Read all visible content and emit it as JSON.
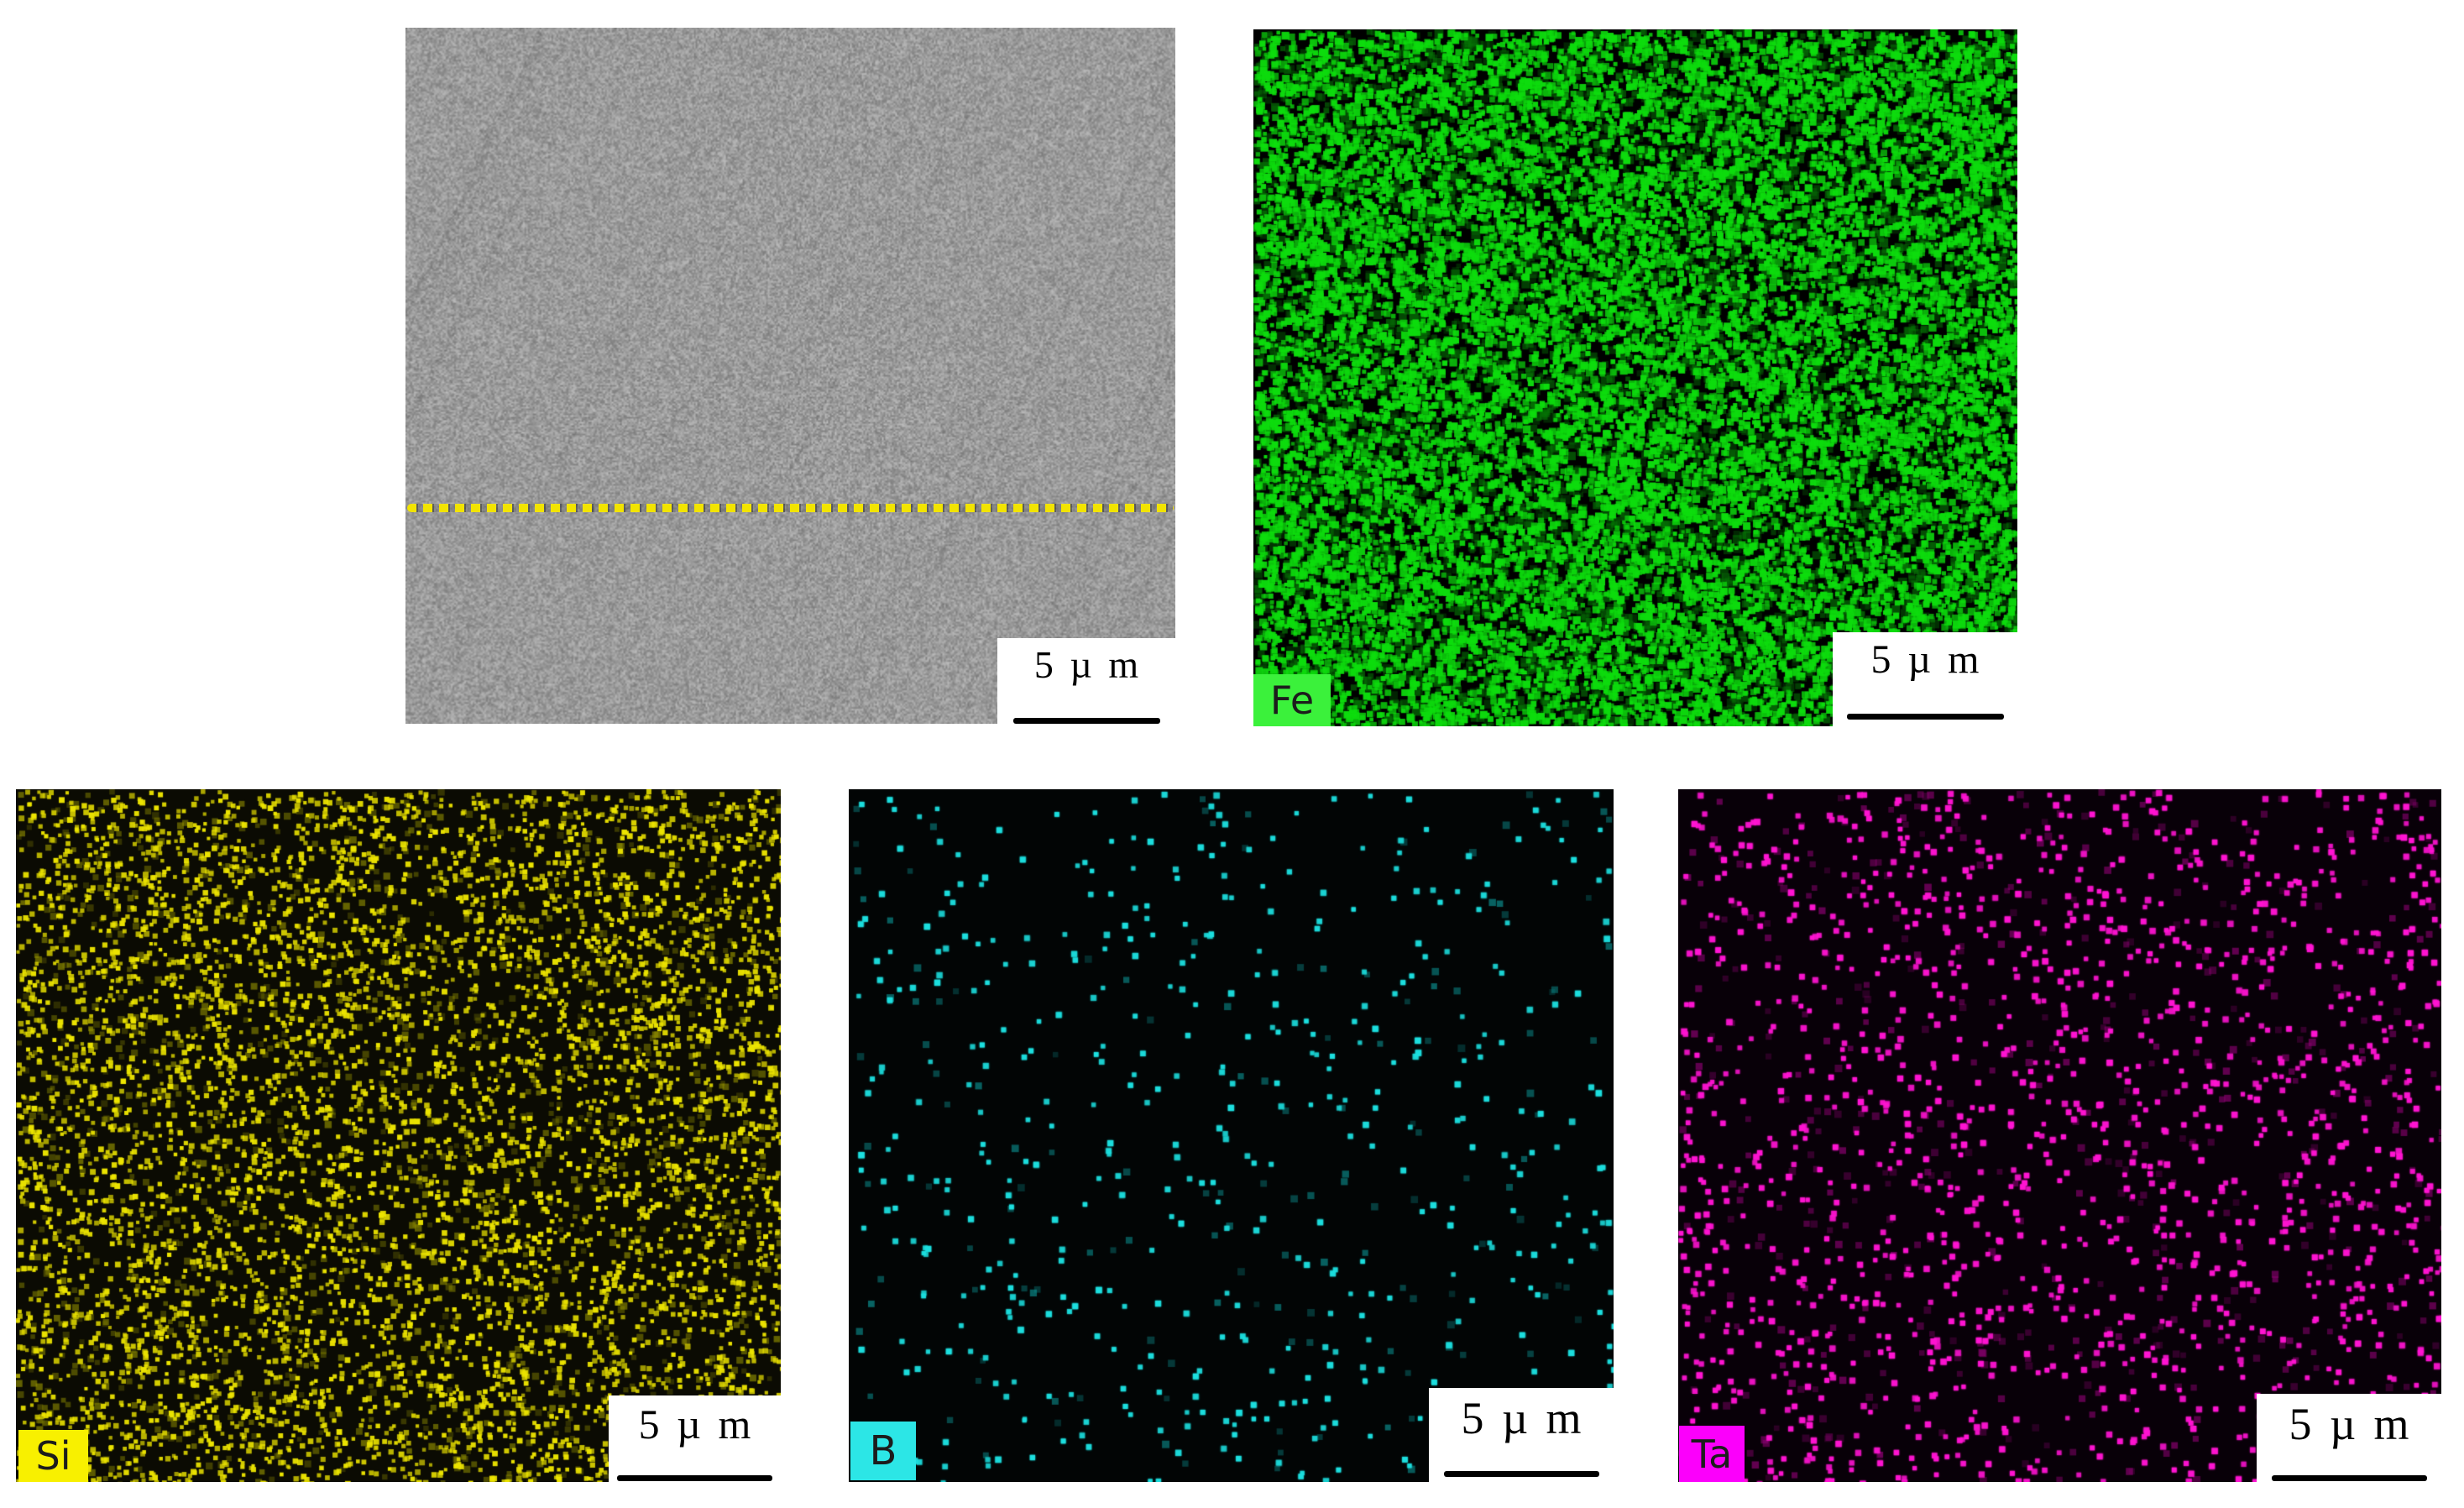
{
  "figure": {
    "kind": "SEM electron image with EDS elemental mapping",
    "panels": {
      "sem": {
        "name": "electron image",
        "scale_bar": "5 µ m",
        "overlay": "horizontal yellow dashed line",
        "overlay_color": "#f2e400",
        "base_gray": "#9b9b9b"
      },
      "fe": {
        "label": "Fe",
        "scale_bar": "5 µ m",
        "background": "#000000",
        "dot_color": "#0ddc0d",
        "under_color": "#067506",
        "label_bg": "#3bf13b",
        "density": "very dense",
        "dot_count": 14500,
        "under_count": 8000,
        "dot_min": 4,
        "dot_max": 9.5
      },
      "si": {
        "label": "Si",
        "scale_bar": "5 µ m",
        "background": "#0b0b03",
        "dot_color": "#ece400",
        "under_color": "#8c8a00",
        "label_bg": "#f8f000",
        "density": "medium",
        "dot_count": 5800,
        "under_count": 1500,
        "dot_min": 4,
        "dot_max": 7
      },
      "b": {
        "label": "B",
        "scale_bar": "5 µ m",
        "background": "#020505",
        "dot_color": "#1cdfdf",
        "under_color": "#0b8c8c",
        "label_bg": "#2ce6e6",
        "density": "sparse",
        "dot_count": 470,
        "under_count": 150,
        "dot_min": 5,
        "dot_max": 7.5
      },
      "ta": {
        "label": "Ta",
        "scale_bar": "5 µ m",
        "background": "#080008",
        "dot_color": "#ff14d2",
        "under_color": "#8a0070",
        "label_bg": "#fb00fb",
        "density": "sparse-medium",
        "dot_count": 1450,
        "under_count": 500,
        "dot_min": 5,
        "dot_max": 7.5
      }
    }
  }
}
